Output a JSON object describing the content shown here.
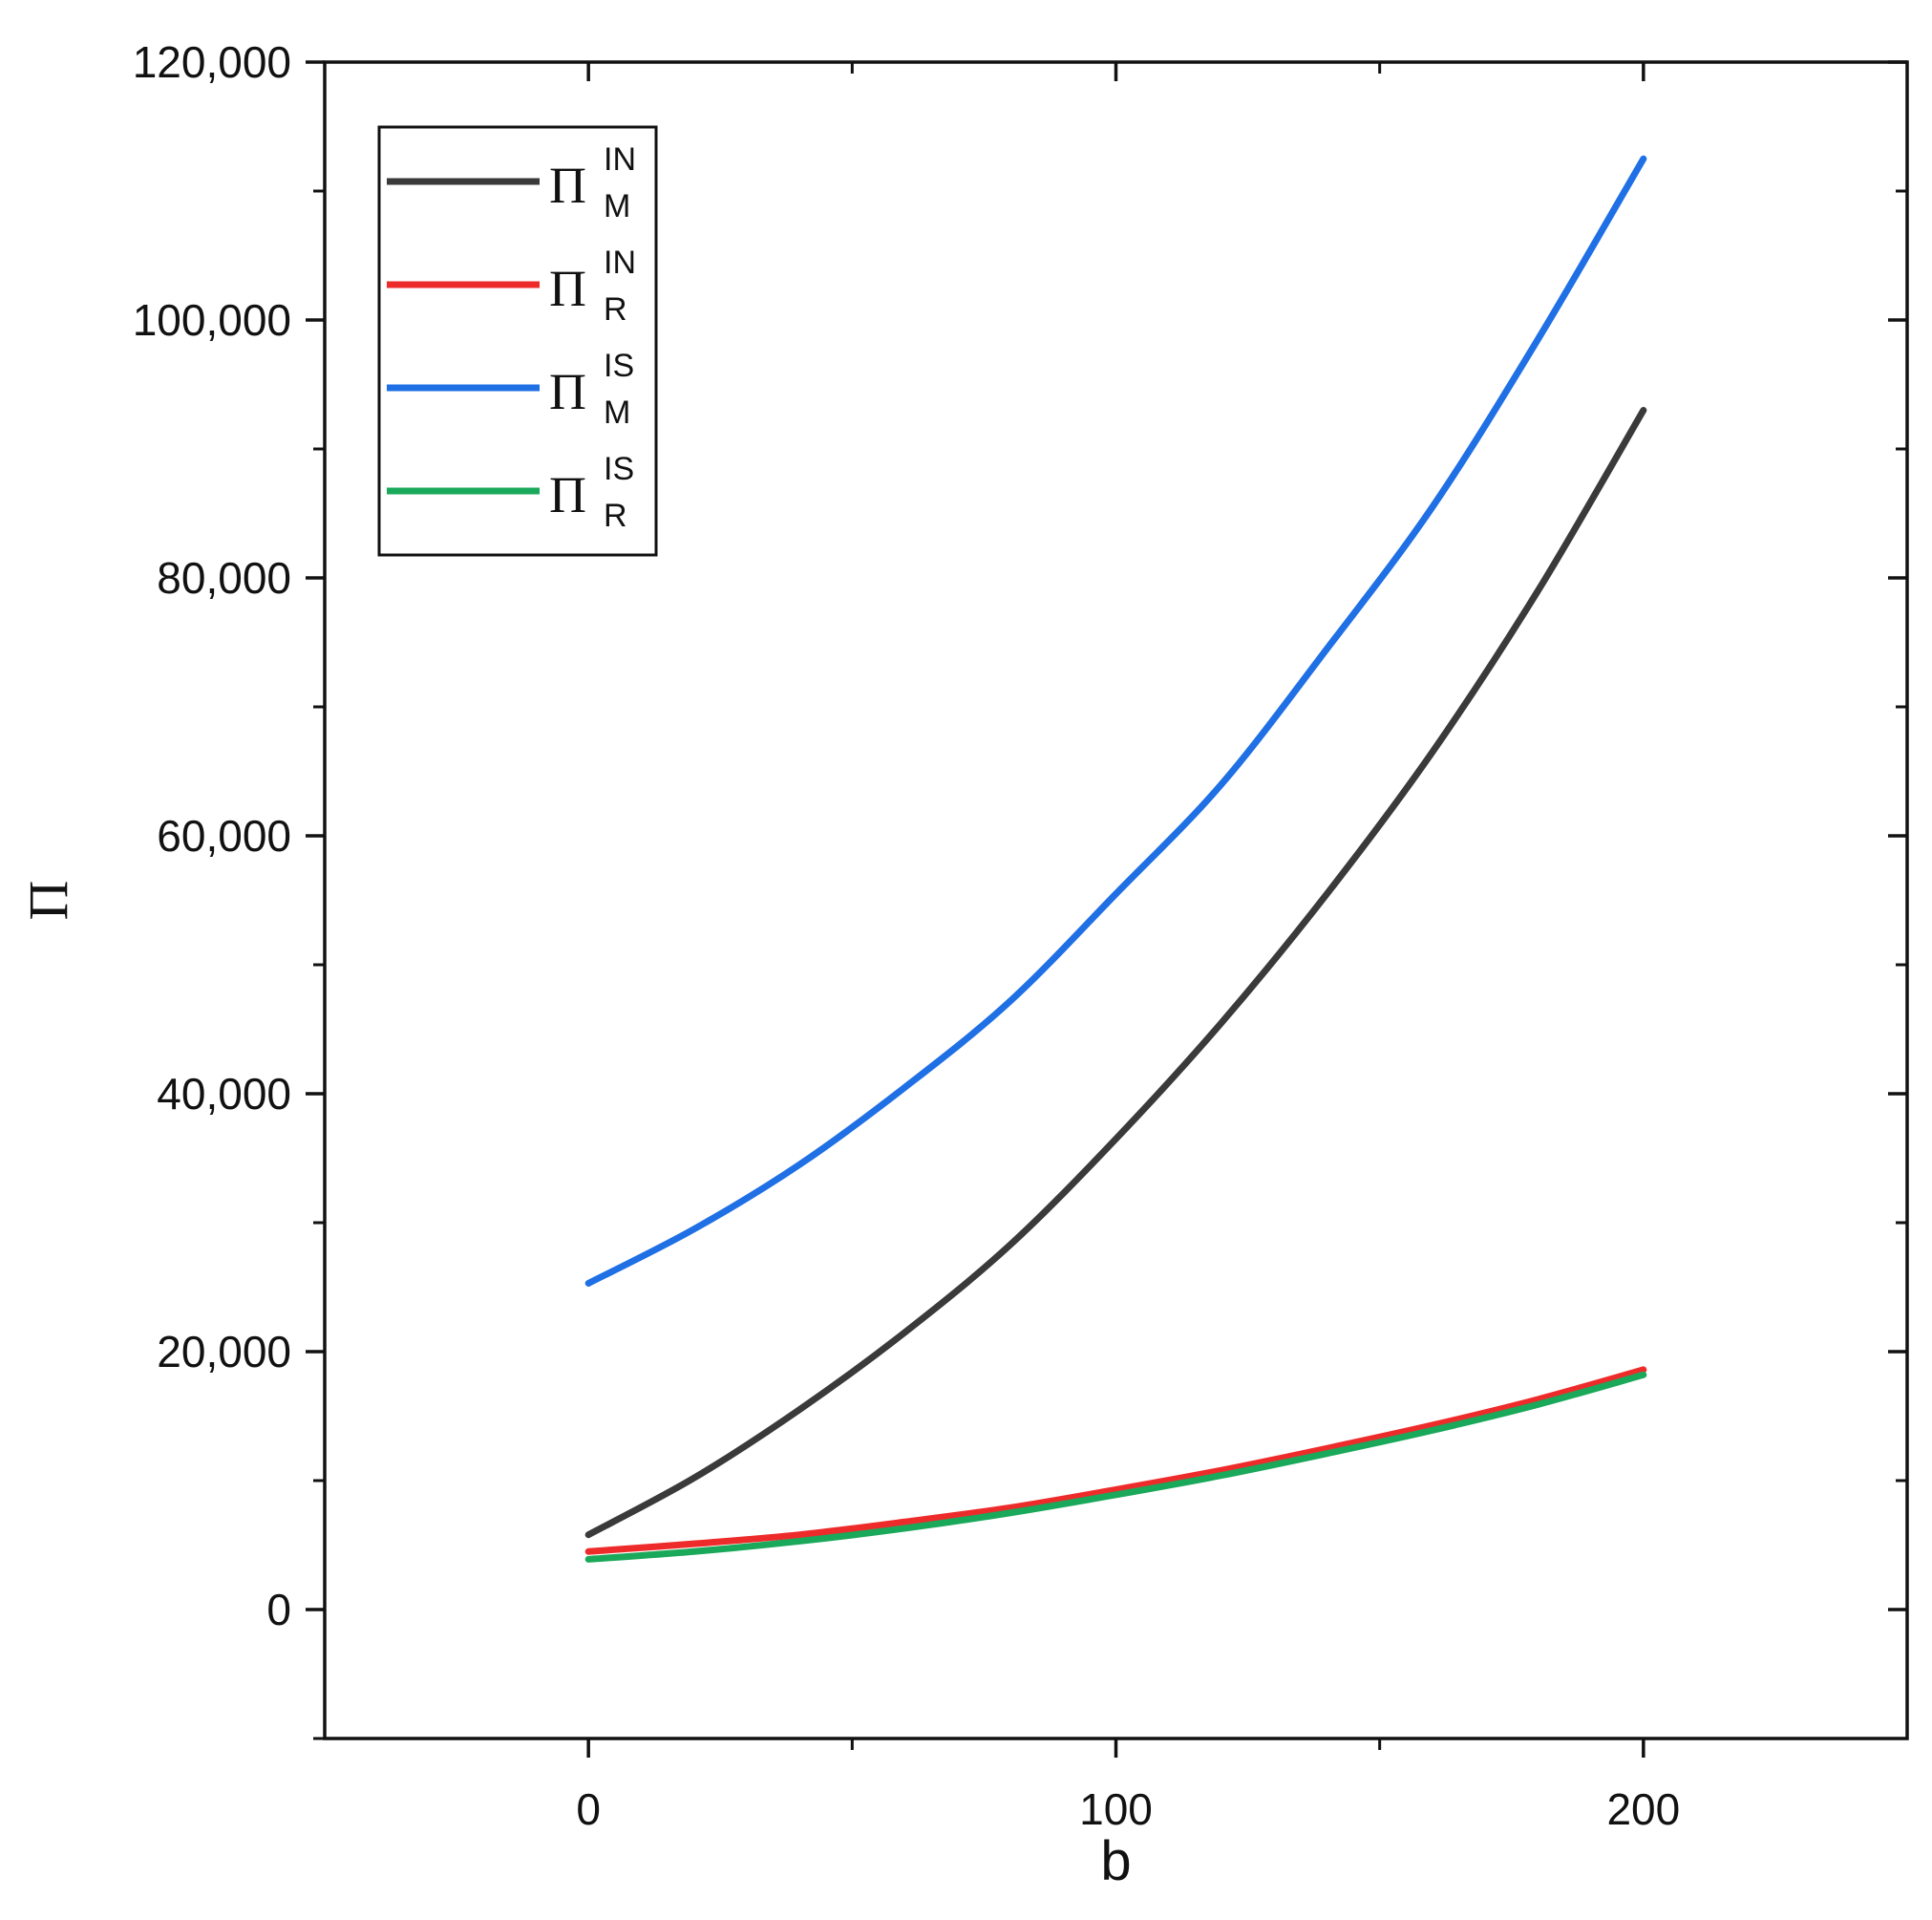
{
  "chart_data": {
    "type": "line",
    "xlabel": "b",
    "ylabel": "Π",
    "xlim": [
      -50,
      250
    ],
    "ylim": [
      -10000,
      120000
    ],
    "x_ticks": [
      0,
      100,
      200
    ],
    "x_tick_labels": [
      "0",
      "100",
      "200"
    ],
    "y_ticks": [
      0,
      20000,
      40000,
      60000,
      80000,
      100000,
      120000
    ],
    "y_tick_labels": [
      "0",
      "20,000",
      "40,000",
      "60,000",
      "80,000",
      "100,000",
      "120,000"
    ],
    "grid": false,
    "legend_position": "top-left",
    "x": [
      0,
      20,
      40,
      60,
      80,
      100,
      120,
      140,
      160,
      180,
      200
    ],
    "series": [
      {
        "label_symbol": "Π",
        "label_sup": "IN",
        "label_sub": "M",
        "color": "#3a3a3a",
        "values": [
          5800,
          10200,
          15500,
          21500,
          28300,
          36500,
          45500,
          55500,
          66500,
          79000,
          93000
        ]
      },
      {
        "label_symbol": "Π",
        "label_sup": "IN",
        "label_sub": "R",
        "color": "#ee2b2b",
        "values": [
          4500,
          5100,
          5800,
          6800,
          7900,
          9300,
          10800,
          12500,
          14300,
          16300,
          18600
        ]
      },
      {
        "label_symbol": "Π",
        "label_sup": "IS",
        "label_sub": "M",
        "color": "#1f6fe5",
        "values": [
          25300,
          29500,
          34500,
          40500,
          47200,
          55500,
          64000,
          74500,
          85500,
          98500,
          112500
        ]
      },
      {
        "label_symbol": "Π",
        "label_sup": "IS",
        "label_sub": "R",
        "color": "#1aa85a",
        "values": [
          3900,
          4500,
          5300,
          6300,
          7500,
          8900,
          10400,
          12100,
          13900,
          15900,
          18200
        ]
      }
    ]
  }
}
